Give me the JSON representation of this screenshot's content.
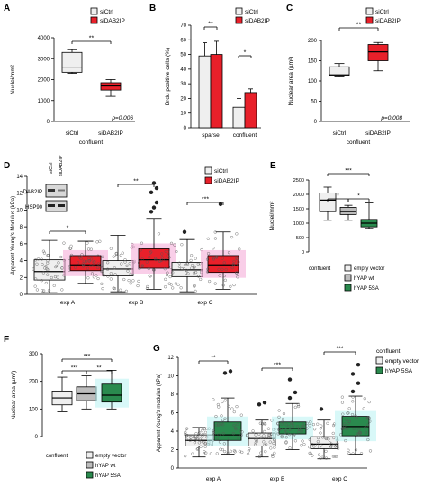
{
  "colors": {
    "white_fill": "#efefef",
    "red": "#e8202a",
    "dark_red": "#b0121a",
    "grey": "#bdbdbd",
    "green": "#2a8a4e",
    "pink_glow": "#f4a6d6",
    "cyan_glow": "#b8f2f2",
    "black": "#000000"
  },
  "chart_data": [
    {
      "panel": "A",
      "type": "box",
      "ylabel": "Nuclei/mm²",
      "yticks": [
        0,
        1000,
        2000,
        3000,
        4000
      ],
      "ylim": [
        0,
        4000
      ],
      "categories": [
        "siCtrl",
        "siDAB2IP"
      ],
      "group_label": "confluent",
      "legend": [
        "siCtrl",
        "siDAB2IP"
      ],
      "boxes": [
        {
          "name": "siCtrl",
          "min": 2300,
          "q1": 2350,
          "median": 2600,
          "q3": 3300,
          "max": 3430
        },
        {
          "name": "siDAB2IP",
          "min": 1200,
          "q1": 1500,
          "median": 1700,
          "q3": 1850,
          "max": 2000
        }
      ],
      "significance": [
        "**"
      ],
      "pvalue": "p=0.006"
    },
    {
      "panel": "B",
      "type": "bar",
      "ylabel": "Brdu positive cells (%)",
      "yticks": [
        0,
        10,
        20,
        30,
        40,
        50,
        60,
        70
      ],
      "ylim": [
        0,
        70
      ],
      "categories": [
        "sparse",
        "confluent"
      ],
      "legend": [
        "siCtrl",
        "siDAB2IP"
      ],
      "series": [
        {
          "name": "siCtrl",
          "values": [
            49,
            14
          ],
          "errors": [
            9,
            6
          ]
        },
        {
          "name": "siDAB2IP",
          "values": [
            50,
            24
          ],
          "errors": [
            9,
            2.5
          ]
        }
      ],
      "significance": [
        "**",
        "*"
      ]
    },
    {
      "panel": "C",
      "type": "box",
      "ylabel": "Nuclear area (µm²)",
      "yticks": [
        0,
        50,
        100,
        150,
        200
      ],
      "ylim": [
        0,
        200
      ],
      "categories": [
        "siCtrl",
        "siDAB2IP"
      ],
      "group_label": "confluent",
      "legend": [
        "siCtrl",
        "siDAB2IP"
      ],
      "boxes": [
        {
          "name": "siCtrl",
          "min": 110,
          "q1": 113,
          "median": 115,
          "q3": 135,
          "max": 143
        },
        {
          "name": "siDAB2IP",
          "min": 125,
          "q1": 150,
          "median": 172,
          "q3": 190,
          "max": 195
        }
      ],
      "significance": [
        "**"
      ],
      "pvalue": "p=0.008"
    },
    {
      "panel": "D",
      "type": "box",
      "ylabel": "Apparent Young's Modulus (kPa)",
      "yticks": [
        0,
        2,
        4,
        6,
        8,
        10,
        12,
        14
      ],
      "ylim": [
        0,
        14
      ],
      "categories": [
        "exp A",
        "exp B",
        "exp C"
      ],
      "legend": [
        "siCtrl",
        "siDAB2IP"
      ],
      "blot_labels": [
        "DAB2IP",
        "HSP90"
      ],
      "blot_lanes": [
        "siCtrl",
        "siDAB2IP"
      ],
      "boxes": [
        {
          "group": "exp A",
          "name": "siCtrl",
          "min": 0.2,
          "q1": 1.7,
          "median": 2.7,
          "q3": 4.1,
          "max": 6.4
        },
        {
          "group": "exp A",
          "name": "siDAB2IP",
          "min": 1.3,
          "q1": 2.8,
          "median": 3.5,
          "q3": 4.6,
          "max": 6.3
        },
        {
          "group": "exp B",
          "name": "siCtrl",
          "min": 0.3,
          "q1": 2.2,
          "median": 3.0,
          "q3": 4.0,
          "max": 7.0
        },
        {
          "group": "exp B",
          "name": "siDAB2IP",
          "min": 0.6,
          "q1": 3.1,
          "median": 4.1,
          "q3": 5.4,
          "max": 9.0
        },
        {
          "group": "exp C",
          "name": "siCtrl",
          "min": 0.3,
          "q1": 2.1,
          "median": 2.9,
          "q3": 3.8,
          "max": 6.5
        },
        {
          "group": "exp C",
          "name": "siDAB2IP",
          "min": 0.6,
          "q1": 2.6,
          "median": 3.5,
          "q3": 4.6,
          "max": 7.4
        }
      ],
      "outliers": [
        {
          "group": "exp B",
          "name": "siDAB2IP",
          "values": [
            9.8,
            10.3,
            10.9,
            12.1,
            13.2,
            12.6
          ]
        },
        {
          "group": "exp C",
          "name": "siCtrl",
          "values": [
            7.4
          ]
        },
        {
          "group": "exp C",
          "name": "siDAB2IP",
          "values": [
            10.7
          ]
        }
      ],
      "significance": [
        "*",
        "**",
        "***"
      ]
    },
    {
      "panel": "E",
      "type": "box",
      "ylabel": "Nuclei/mm²",
      "yticks": [
        0,
        500,
        1000,
        1500,
        2000,
        2500
      ],
      "ylim": [
        0,
        2500
      ],
      "group_label": "confluent",
      "legend": [
        "empty vector",
        "hYAP wt",
        "hYAP 5SA"
      ],
      "boxes": [
        {
          "name": "empty vector",
          "min": 1100,
          "q1": 1400,
          "median": 1800,
          "q3": 2050,
          "max": 2250
        },
        {
          "name": "hYAP wt",
          "min": 1100,
          "q1": 1300,
          "median": 1400,
          "q3": 1550,
          "max": 1620
        },
        {
          "name": "hYAP 5SA",
          "min": 820,
          "q1": 870,
          "median": 1000,
          "q3": 1130,
          "max": 1700
        }
      ],
      "significance": [
        "***",
        "*",
        "*"
      ]
    },
    {
      "panel": "F",
      "type": "box",
      "ylabel": "Nuclear area (µm²)",
      "yticks": [
        0,
        100,
        200,
        300
      ],
      "ylim": [
        0,
        300
      ],
      "group_label": "confluent",
      "legend": [
        "empty vector",
        "hYAP wt",
        "hYAP 5SA"
      ],
      "boxes": [
        {
          "name": "empty vector",
          "min": 90,
          "q1": 115,
          "median": 140,
          "q3": 165,
          "max": 215
        },
        {
          "name": "hYAP wt",
          "min": 100,
          "q1": 130,
          "median": 155,
          "q3": 180,
          "max": 220
        },
        {
          "name": "hYAP 5SA",
          "min": 100,
          "q1": 125,
          "median": 150,
          "q3": 190,
          "max": 240
        }
      ],
      "significance": [
        "***",
        "**",
        "***"
      ]
    },
    {
      "panel": "G",
      "type": "box",
      "ylabel": "Apparent Young's modulus (kPa)",
      "yticks": [
        0,
        2,
        4,
        6,
        8,
        10,
        12
      ],
      "ylim": [
        0,
        12
      ],
      "categories": [
        "exp A",
        "exp B",
        "exp C"
      ],
      "legend_title": "confluent",
      "legend": [
        "empty vector",
        "hYAP 5SA"
      ],
      "boxes": [
        {
          "group": "exp A",
          "name": "empty vector",
          "min": 1.2,
          "q1": 2.4,
          "median": 3.0,
          "q3": 3.6,
          "max": 4.4
        },
        {
          "group": "exp A",
          "name": "hYAP 5SA",
          "min": 1.5,
          "q1": 3.0,
          "median": 3.6,
          "q3": 5.0,
          "max": 7.6
        },
        {
          "group": "exp B",
          "name": "empty vector",
          "min": 1.2,
          "q1": 2.4,
          "median": 3.2,
          "q3": 3.8,
          "max": 5.2
        },
        {
          "group": "exp B",
          "name": "hYAP 5SA",
          "min": 2.0,
          "q1": 3.7,
          "median": 4.3,
          "q3": 5.0,
          "max": 7.0
        },
        {
          "group": "exp C",
          "name": "empty vector",
          "min": 1.0,
          "q1": 2.1,
          "median": 2.6,
          "q3": 3.4,
          "max": 5.2
        },
        {
          "group": "exp C",
          "name": "hYAP 5SA",
          "min": 1.5,
          "q1": 3.5,
          "median": 4.5,
          "q3": 5.6,
          "max": 7.8
        }
      ],
      "outliers": [
        {
          "group": "exp A",
          "name": "hYAP 5SA",
          "values": [
            10.3,
            10.5
          ]
        },
        {
          "group": "exp B",
          "name": "empty vector",
          "values": [
            6.9,
            7.1
          ]
        },
        {
          "group": "exp B",
          "name": "hYAP 5SA",
          "values": [
            7.6,
            8.2,
            9.6
          ]
        },
        {
          "group": "exp C",
          "name": "empty vector",
          "values": [
            6.4
          ]
        },
        {
          "group": "exp C",
          "name": "hYAP 5SA",
          "values": [
            8.3,
            9.2,
            10.2,
            11.2
          ]
        }
      ],
      "significance": [
        "**",
        "***",
        "***"
      ]
    }
  ]
}
